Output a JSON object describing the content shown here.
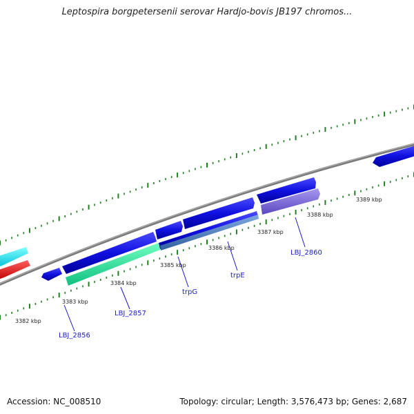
{
  "title": "Leptospira borgpetersenii serovar Hardjo-bovis JB197 chromos...",
  "footer": {
    "accession": "Accession: NC_008510",
    "summary": "Topology: circular; Length: 3,576,473 bp; Genes: 2,687"
  },
  "kbp_labels": [
    "3382 kbp",
    "3383 kbp",
    "3384 kbp",
    "3385 kbp",
    "3386 kbp",
    "3387 kbp",
    "3388 kbp",
    "3389 kbp"
  ],
  "gene_labels": [
    "LBJ_2856",
    "LBJ_2857",
    "trpG",
    "trpE",
    "LBJ_2860"
  ],
  "colors": {
    "backbone": "#808080",
    "gene_forward": "#1010e0",
    "gene_reverse": "#1010e0",
    "highlight_green": "#20e090",
    "highlight_blue": "#5080c0",
    "highlight_purple": "#7a6ad8",
    "cyan_gene": "#00e0f0",
    "red_gene": "#f01010",
    "tick": "#208020",
    "label_blue": "#1a1acc"
  }
}
